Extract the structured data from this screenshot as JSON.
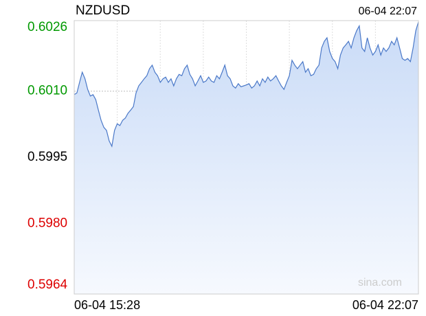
{
  "chart_data": {
    "type": "line",
    "title": "NZDUSD",
    "timestamp": "06-04 22:07",
    "watermark": "sina.com",
    "x_labels": [
      "06-04 15:28",
      "06-04 22:07"
    ],
    "color": "#4a78c8",
    "ylim": [
      0.5964,
      0.6026
    ],
    "yticks": [
      0.6026,
      0.601,
      0.5995,
      0.598,
      0.5964
    ],
    "ytick_labels": [
      "0.6026",
      "0.6010",
      "0.5995",
      "0.5980",
      "0.5964"
    ],
    "ytick_colors": [
      "#009900",
      "#009900",
      "#000000",
      "#dd0000",
      "#dd0000"
    ],
    "grid": true,
    "values": [
      0.60092,
      0.60096,
      0.6012,
      0.60143,
      0.60128,
      0.60104,
      0.60089,
      0.60092,
      0.60081,
      0.60057,
      0.60034,
      0.60018,
      0.60011,
      0.59987,
      0.59975,
      0.60011,
      0.60026,
      0.60022,
      0.60034,
      0.60039,
      0.6005,
      0.60057,
      0.60065,
      0.60096,
      0.60112,
      0.6012,
      0.60128,
      0.60135,
      0.60151,
      0.60159,
      0.60143,
      0.60135,
      0.6012,
      0.60128,
      0.60132,
      0.6012,
      0.60128,
      0.60112,
      0.60128,
      0.60138,
      0.60135,
      0.60151,
      0.60159,
      0.60138,
      0.60128,
      0.60112,
      0.60123,
      0.60135,
      0.6012,
      0.60123,
      0.60132,
      0.60123,
      0.6012,
      0.60135,
      0.60128,
      0.60143,
      0.60159,
      0.60135,
      0.60128,
      0.60112,
      0.60107,
      0.60117,
      0.6011,
      0.60112,
      0.60114,
      0.60117,
      0.60107,
      0.60112,
      0.60123,
      0.60112,
      0.60128,
      0.6012,
      0.60132,
      0.60123,
      0.60128,
      0.60135,
      0.60123,
      0.60112,
      0.60104,
      0.6012,
      0.60135,
      0.6017,
      0.60159,
      0.60151,
      0.60159,
      0.60167,
      0.60143,
      0.60151,
      0.60135,
      0.60138,
      0.60151,
      0.60159,
      0.60198,
      0.60213,
      0.60221,
      0.6019,
      0.60174,
      0.60167,
      0.60151,
      0.60182,
      0.60198,
      0.60205,
      0.60213,
      0.60198,
      0.60221,
      0.60237,
      0.60248,
      0.60198,
      0.6019,
      0.60221,
      0.60198,
      0.60182,
      0.6019,
      0.60205,
      0.60182,
      0.60198,
      0.6019,
      0.60198,
      0.60213,
      0.60205,
      0.60221,
      0.60198,
      0.60174,
      0.6017,
      0.60174,
      0.60167,
      0.60198,
      0.60237,
      0.60257
    ]
  }
}
